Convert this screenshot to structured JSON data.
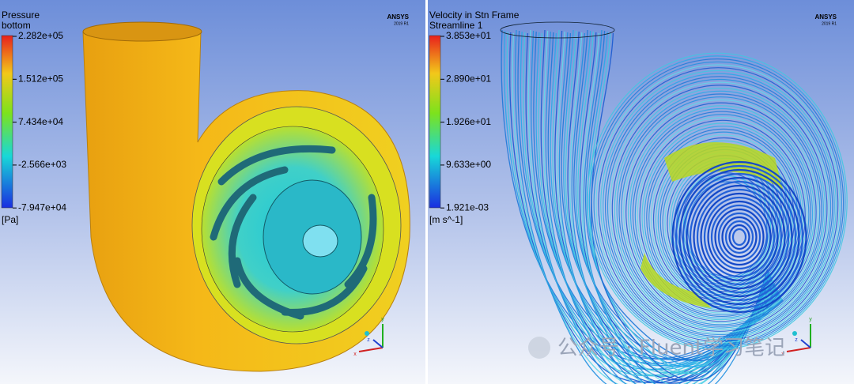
{
  "panels": [
    {
      "title": "Pressure",
      "subtitle": "bottom",
      "legend": {
        "labels": [
          "2.282e+05",
          "1.512e+05",
          "7.434e+04",
          "-2.566e+03",
          "-7.947e+04"
        ],
        "unit": "[Pa]"
      },
      "logo": "ANSYS",
      "version": "2019 R1",
      "axes": [
        "y",
        "z",
        "x"
      ]
    },
    {
      "title": "Velocity in Stn Frame",
      "subtitle": "Streamline 1",
      "legend": {
        "labels": [
          "3.853e+01",
          "2.890e+01",
          "1.926e+01",
          "9.633e+00",
          "1.921e-03"
        ],
        "unit": "[m s^-1]"
      },
      "logo": "ANSYS",
      "version": "2019 R1",
      "axes": [
        "y",
        "z",
        "x"
      ]
    }
  ],
  "watermark": "公众号 · Fluent学习笔记"
}
